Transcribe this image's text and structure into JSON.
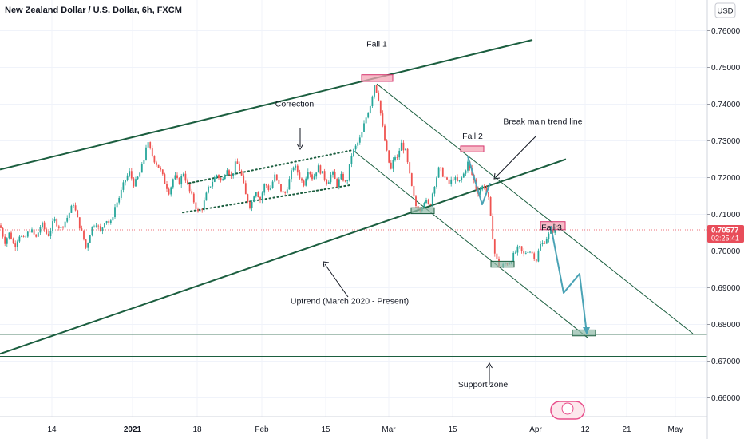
{
  "header": {
    "title": "New Zealand Dollar / U.S. Dollar, 6h, FXCM",
    "currency_label": "USD"
  },
  "price_tag": {
    "value": "0.70577",
    "countdown": "02:25:41"
  },
  "colors": {
    "bull": "#26a69a",
    "bear": "#ef5350",
    "channel": "#1b5e3f",
    "projection": "#4aa3b5",
    "zone_red_fill": "#f4a6b5",
    "zone_red_stroke": "#d6336c",
    "zone_green_fill": "#8fb9a6",
    "zone_green_stroke": "#1b5e3f",
    "current_price": "#e84d5a"
  },
  "chart_data": {
    "type": "candlestick",
    "title": "New Zealand Dollar / U.S. Dollar, 6h, FXCM",
    "ylim": [
      0.6585,
      0.7645
    ],
    "y_ticks": [
      "0.76000",
      "0.75000",
      "0.74000",
      "0.73000",
      "0.72000",
      "0.71000",
      "0.70000",
      "0.69000",
      "0.68000",
      "0.67000",
      "0.66000"
    ],
    "x_ticks": [
      "14",
      "2021",
      "18",
      "Feb",
      "15",
      "Mar",
      "15",
      "Apr",
      "12",
      "21",
      "May"
    ],
    "price_path": [
      [
        0,
        0.707
      ],
      [
        6,
        0.7025
      ],
      [
        12,
        0.705
      ],
      [
        18,
        0.701
      ],
      [
        24,
        0.7045
      ],
      [
        30,
        0.703
      ],
      [
        38,
        0.706
      ],
      [
        45,
        0.7035
      ],
      [
        52,
        0.7075
      ],
      [
        60,
        0.704
      ],
      [
        68,
        0.7085
      ],
      [
        76,
        0.706
      ],
      [
        84,
        0.709
      ],
      [
        92,
        0.713
      ],
      [
        98,
        0.708
      ],
      [
        104,
        0.704
      ],
      [
        108,
        0.7005
      ],
      [
        114,
        0.706
      ],
      [
        120,
        0.708
      ],
      [
        126,
        0.705
      ],
      [
        132,
        0.709
      ],
      [
        138,
        0.707
      ],
      [
        144,
        0.712
      ],
      [
        150,
        0.715
      ],
      [
        156,
        0.719
      ],
      [
        162,
        0.7215
      ],
      [
        168,
        0.718
      ],
      [
        174,
        0.7205
      ],
      [
        180,
        0.7245
      ],
      [
        184,
        0.73
      ],
      [
        188,
        0.7275
      ],
      [
        194,
        0.7245
      ],
      [
        200,
        0.7225
      ],
      [
        206,
        0.719
      ],
      [
        212,
        0.716
      ],
      [
        218,
        0.7205
      ],
      [
        224,
        0.7185
      ],
      [
        230,
        0.7215
      ],
      [
        236,
        0.717
      ],
      [
        242,
        0.714
      ],
      [
        248,
        0.7105
      ],
      [
        254,
        0.712
      ],
      [
        260,
        0.7165
      ],
      [
        266,
        0.719
      ],
      [
        272,
        0.721
      ],
      [
        278,
        0.7185
      ],
      [
        284,
        0.723
      ],
      [
        290,
        0.72
      ],
      [
        296,
        0.7245
      ],
      [
        302,
        0.721
      ],
      [
        308,
        0.715
      ],
      [
        314,
        0.712
      ],
      [
        320,
        0.717
      ],
      [
        326,
        0.714
      ],
      [
        332,
        0.7185
      ],
      [
        338,
        0.7165
      ],
      [
        344,
        0.7205
      ],
      [
        350,
        0.7175
      ],
      [
        356,
        0.715
      ],
      [
        362,
        0.719
      ],
      [
        368,
        0.7235
      ],
      [
        374,
        0.721
      ],
      [
        380,
        0.718
      ],
      [
        386,
        0.7225
      ],
      [
        392,
        0.7195
      ],
      [
        398,
        0.723
      ],
      [
        404,
        0.721
      ],
      [
        410,
        0.7185
      ],
      [
        416,
        0.7215
      ],
      [
        422,
        0.718
      ],
      [
        428,
        0.7205
      ],
      [
        434,
        0.718
      ],
      [
        440,
        0.726
      ],
      [
        446,
        0.7285
      ],
      [
        452,
        0.731
      ],
      [
        458,
        0.736
      ],
      [
        464,
        0.74
      ],
      [
        469,
        0.7455
      ],
      [
        474,
        0.742
      ],
      [
        478,
        0.7355
      ],
      [
        482,
        0.73
      ],
      [
        486,
        0.725
      ],
      [
        490,
        0.722
      ],
      [
        494,
        0.726
      ],
      [
        498,
        0.725
      ],
      [
        502,
        0.7295
      ],
      [
        508,
        0.727
      ],
      [
        512,
        0.722
      ],
      [
        516,
        0.717
      ],
      [
        520,
        0.7125
      ],
      [
        526,
        0.7115
      ],
      [
        532,
        0.714
      ],
      [
        538,
        0.712
      ],
      [
        544,
        0.718
      ],
      [
        550,
        0.7225
      ],
      [
        556,
        0.7205
      ],
      [
        562,
        0.718
      ],
      [
        568,
        0.72
      ],
      [
        574,
        0.7185
      ],
      [
        580,
        0.7205
      ],
      [
        586,
        0.724
      ],
      [
        590,
        0.7215
      ],
      [
        594,
        0.719
      ],
      [
        598,
        0.716
      ],
      [
        602,
        0.717
      ],
      [
        606,
        0.718
      ],
      [
        609,
        0.7165
      ],
      [
        612,
        0.714
      ],
      [
        616,
        0.706
      ],
      [
        620,
        0.699
      ],
      [
        624,
        0.6965
      ],
      [
        628,
        0.6955
      ],
      [
        632,
        0.6965
      ],
      [
        638,
        0.697
      ],
      [
        644,
        0.699
      ],
      [
        650,
        0.701
      ],
      [
        656,
        0.699
      ],
      [
        662,
        0.7005
      ],
      [
        668,
        0.699
      ],
      [
        672,
        0.6975
      ],
      [
        676,
        0.7015
      ],
      [
        680,
        0.702
      ],
      [
        686,
        0.704
      ],
      [
        692,
        0.7055
      ],
      [
        696,
        0.706
      ]
    ],
    "current_price": 0.70577,
    "annotations": [
      {
        "label": "Fall 1",
        "x": 472,
        "price": 0.7557
      },
      {
        "label": "Fall 2",
        "x": 592,
        "price": 0.7305
      },
      {
        "label": "Fall 3",
        "x": 691,
        "price": 0.7057
      },
      {
        "label": "Correction",
        "x": 369,
        "price": 0.7394
      },
      {
        "label": "Break main trend line",
        "x": 680,
        "price": 0.7346
      },
      {
        "label": "Uptrend (March 2020 - Present)",
        "x": 438,
        "price": 0.6856
      },
      {
        "label": "Support zone",
        "x": 605,
        "price": 0.6629
      }
    ],
    "trendlines": [
      {
        "name": "upper channel",
        "p1": [
          0,
          0.7222
        ],
        "p2": [
          667,
          0.7575
        ]
      },
      {
        "name": "lower channel",
        "p1": [
          0,
          0.672
        ],
        "p2": [
          709,
          0.725
        ]
      },
      {
        "name": "descending upper",
        "p1": [
          472,
          0.7455
        ],
        "p2": [
          868,
          0.6775
        ]
      },
      {
        "name": "descending lower",
        "p1": [
          443,
          0.7273
        ],
        "p2": [
          736,
          0.6764
        ]
      },
      {
        "name": "correction top",
        "p1": [
          237,
          0.7185
        ],
        "p2": [
          442,
          0.7275
        ]
      },
      {
        "name": "correction bottom",
        "p1": [
          229,
          0.7105
        ],
        "p2": [
          440,
          0.718
        ]
      }
    ],
    "support_zone": [
      0.6713,
      0.6773
    ],
    "zones": [
      {
        "kind": "red",
        "x1": 453,
        "x2": 492,
        "p1": 0.748,
        "p2": 0.7462
      },
      {
        "kind": "red",
        "x1": 577,
        "x2": 606,
        "p1": 0.7286,
        "p2": 0.727
      },
      {
        "kind": "red",
        "x1": 677,
        "x2": 708,
        "p1": 0.708,
        "p2": 0.7058
      },
      {
        "kind": "green",
        "x1": 515,
        "x2": 544,
        "p1": 0.7118,
        "p2": 0.7102
      },
      {
        "kind": "green",
        "x1": 615,
        "x2": 644,
        "p1": 0.6972,
        "p2": 0.6956
      },
      {
        "kind": "green",
        "x1": 717,
        "x2": 746,
        "p1": 0.6785,
        "p2": 0.6769
      }
    ],
    "projections": [
      {
        "name": "fall-2 projection",
        "points": [
          [
            586,
            0.7258
          ],
          [
            604,
            0.7127
          ],
          [
            614,
            0.7185
          ]
        ]
      },
      {
        "name": "fall-3 projection",
        "points": [
          [
            690,
            0.7068
          ],
          [
            706,
            0.6886
          ],
          [
            726,
            0.6938
          ],
          [
            735,
            0.6775
          ]
        ]
      }
    ]
  }
}
